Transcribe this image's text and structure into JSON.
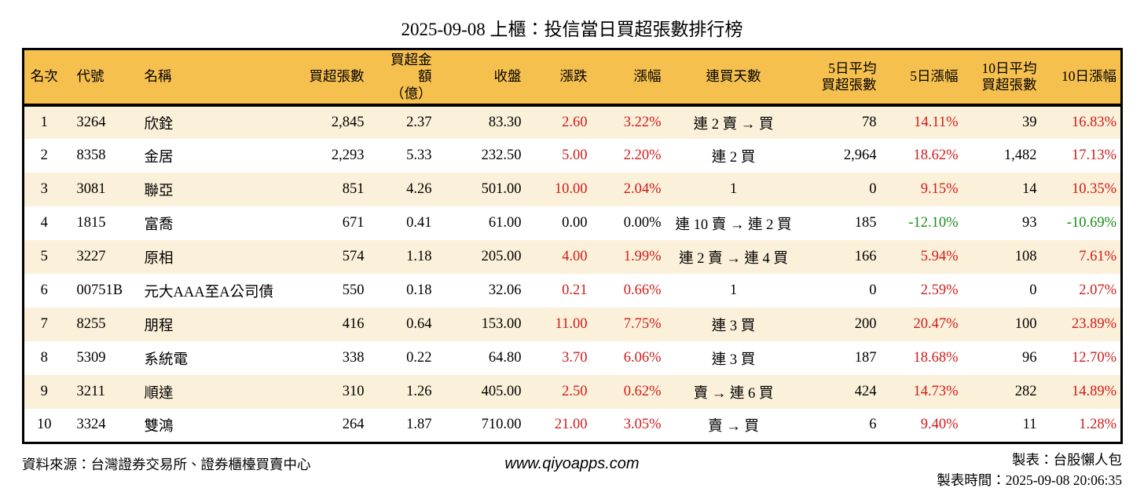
{
  "page": {
    "title": "2025-09-08 上櫃：投信當日買超張數排行榜",
    "footer": {
      "source": "資料來源：台灣證券交易所、證券櫃檯買賣中心",
      "website": "www.qiyoapps.com",
      "maker": "製表：台股懶人包",
      "made_time": "製表時間：2025-09-08 20:06:35"
    }
  },
  "colors": {
    "header_bg": "#f6c04f",
    "row_alt_bg": "#fbf0d9",
    "up_red": "#cf1c1c",
    "down_green": "#1a8c1a",
    "border": "#000000"
  },
  "chart_data": {
    "type": "table",
    "title": "2025-09-08 上櫃：投信當日買超張數排行榜",
    "columns": [
      {
        "key": "rank",
        "label": "名次",
        "align": "center"
      },
      {
        "key": "code",
        "label": "代號",
        "align": "left"
      },
      {
        "key": "name",
        "label": "名稱",
        "align": "left"
      },
      {
        "key": "net_shares",
        "label": "買超張數",
        "align": "right"
      },
      {
        "key": "net_amount",
        "label": "買超金額\n（億）",
        "align": "right"
      },
      {
        "key": "close",
        "label": "收盤",
        "align": "right"
      },
      {
        "key": "change",
        "label": "漲跌",
        "align": "right"
      },
      {
        "key": "change_pct",
        "label": "漲幅",
        "align": "right"
      },
      {
        "key": "streak",
        "label": "連買天數",
        "align": "center"
      },
      {
        "key": "avg5",
        "label": "5日平均\n買超張數",
        "align": "right"
      },
      {
        "key": "pct5",
        "label": "5日漲幅",
        "align": "right"
      },
      {
        "key": "avg10",
        "label": "10日平均\n買超張數",
        "align": "right"
      },
      {
        "key": "pct10",
        "label": "10日漲幅",
        "align": "right"
      }
    ],
    "rows": [
      {
        "cells": {
          "rank": "1",
          "code": "3264",
          "name": "欣銓",
          "net_shares": "2,845",
          "net_amount": "2.37",
          "close": "83.30",
          "change": "2.60",
          "change_pct": "3.22%",
          "streak": "連 2 賣 → 買",
          "avg5": "78",
          "pct5": "14.11%",
          "avg10": "39",
          "pct10": "16.83%"
        },
        "trends": {
          "change": "up",
          "change_pct": "up",
          "pct5": "up",
          "pct10": "up"
        }
      },
      {
        "cells": {
          "rank": "2",
          "code": "8358",
          "name": "金居",
          "net_shares": "2,293",
          "net_amount": "5.33",
          "close": "232.50",
          "change": "5.00",
          "change_pct": "2.20%",
          "streak": "連 2 買",
          "avg5": "2,964",
          "pct5": "18.62%",
          "avg10": "1,482",
          "pct10": "17.13%"
        },
        "trends": {
          "change": "up",
          "change_pct": "up",
          "pct5": "up",
          "pct10": "up"
        }
      },
      {
        "cells": {
          "rank": "3",
          "code": "3081",
          "name": "聯亞",
          "net_shares": "851",
          "net_amount": "4.26",
          "close": "501.00",
          "change": "10.00",
          "change_pct": "2.04%",
          "streak": "1",
          "avg5": "0",
          "pct5": "9.15%",
          "avg10": "14",
          "pct10": "10.35%"
        },
        "trends": {
          "change": "up",
          "change_pct": "up",
          "pct5": "up",
          "pct10": "up"
        }
      },
      {
        "cells": {
          "rank": "4",
          "code": "1815",
          "name": "富喬",
          "net_shares": "671",
          "net_amount": "0.41",
          "close": "61.00",
          "change": "0.00",
          "change_pct": "0.00%",
          "streak": "連 10 賣 → 連 2 買",
          "avg5": "185",
          "pct5": "-12.10%",
          "avg10": "93",
          "pct10": "-10.69%"
        },
        "trends": {
          "change": "flat",
          "change_pct": "flat",
          "pct5": "down",
          "pct10": "down"
        }
      },
      {
        "cells": {
          "rank": "5",
          "code": "3227",
          "name": "原相",
          "net_shares": "574",
          "net_amount": "1.18",
          "close": "205.00",
          "change": "4.00",
          "change_pct": "1.99%",
          "streak": "連 2 賣 → 連 4 買",
          "avg5": "166",
          "pct5": "5.94%",
          "avg10": "108",
          "pct10": "7.61%"
        },
        "trends": {
          "change": "up",
          "change_pct": "up",
          "pct5": "up",
          "pct10": "up"
        }
      },
      {
        "cells": {
          "rank": "6",
          "code": "00751B",
          "name": "元大AAA至A公司債",
          "net_shares": "550",
          "net_amount": "0.18",
          "close": "32.06",
          "change": "0.21",
          "change_pct": "0.66%",
          "streak": "1",
          "avg5": "0",
          "pct5": "2.59%",
          "avg10": "0",
          "pct10": "2.07%"
        },
        "trends": {
          "change": "up",
          "change_pct": "up",
          "pct5": "up",
          "pct10": "up"
        }
      },
      {
        "cells": {
          "rank": "7",
          "code": "8255",
          "name": "朋程",
          "net_shares": "416",
          "net_amount": "0.64",
          "close": "153.00",
          "change": "11.00",
          "change_pct": "7.75%",
          "streak": "連 3 買",
          "avg5": "200",
          "pct5": "20.47%",
          "avg10": "100",
          "pct10": "23.89%"
        },
        "trends": {
          "change": "up",
          "change_pct": "up",
          "pct5": "up",
          "pct10": "up"
        }
      },
      {
        "cells": {
          "rank": "8",
          "code": "5309",
          "name": "系統電",
          "net_shares": "338",
          "net_amount": "0.22",
          "close": "64.80",
          "change": "3.70",
          "change_pct": "6.06%",
          "streak": "連 3 買",
          "avg5": "187",
          "pct5": "18.68%",
          "avg10": "96",
          "pct10": "12.70%"
        },
        "trends": {
          "change": "up",
          "change_pct": "up",
          "pct5": "up",
          "pct10": "up"
        }
      },
      {
        "cells": {
          "rank": "9",
          "code": "3211",
          "name": "順達",
          "net_shares": "310",
          "net_amount": "1.26",
          "close": "405.00",
          "change": "2.50",
          "change_pct": "0.62%",
          "streak": "賣 → 連 6 買",
          "avg5": "424",
          "pct5": "14.73%",
          "avg10": "282",
          "pct10": "14.89%"
        },
        "trends": {
          "change": "up",
          "change_pct": "up",
          "pct5": "up",
          "pct10": "up"
        }
      },
      {
        "cells": {
          "rank": "10",
          "code": "3324",
          "name": "雙鴻",
          "net_shares": "264",
          "net_amount": "1.87",
          "close": "710.00",
          "change": "21.00",
          "change_pct": "3.05%",
          "streak": "賣 → 買",
          "avg5": "6",
          "pct5": "9.40%",
          "avg10": "11",
          "pct10": "1.28%"
        },
        "trends": {
          "change": "up",
          "change_pct": "up",
          "pct5": "up",
          "pct10": "up"
        }
      }
    ]
  }
}
